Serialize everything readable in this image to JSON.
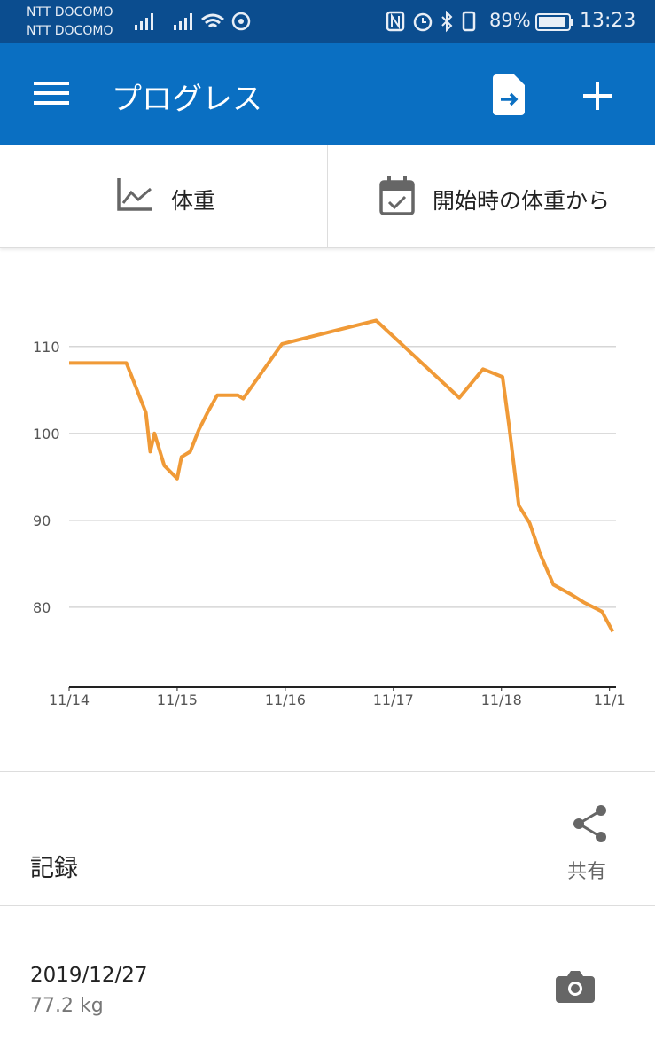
{
  "status_bar": {
    "carriers": [
      "NTT DOCOMO",
      "NTT DOCOMO"
    ],
    "battery": "89%",
    "time": "13:23"
  },
  "app_bar": {
    "title": "プログレス"
  },
  "tabs": [
    "体重",
    "開始時の体重から"
  ],
  "chart_data": {
    "type": "line",
    "x": [
      0,
      0.53,
      0.71,
      0.75,
      0.79,
      0.88,
      1.0,
      1.04,
      1.12,
      1.2,
      1.28,
      1.37,
      1.56,
      1.61,
      1.97,
      2.84,
      3.61,
      3.83,
      4.01,
      4.07,
      4.16,
      4.26,
      4.36,
      4.48,
      4.64,
      4.77,
      4.93,
      5.03
    ],
    "values": [
      108.1,
      108.1,
      102.4,
      97.9,
      100,
      96.3,
      94.8,
      97.3,
      97.9,
      100.4,
      102.4,
      104.4,
      104.4,
      104,
      110.3,
      113,
      104.1,
      107.4,
      106.5,
      100.9,
      91.7,
      89.7,
      86.1,
      82.6,
      81.5,
      80.5,
      79.5,
      77.2
    ],
    "color": "#f09a37",
    "xlim": [
      0,
      5.06
    ],
    "ylim": [
      70.8,
      119
    ],
    "xticks": [
      {
        "value": 0,
        "label": "11/14"
      },
      {
        "value": 1,
        "label": "11/15"
      },
      {
        "value": 2,
        "label": "11/16"
      },
      {
        "value": 3,
        "label": "11/17"
      },
      {
        "value": 4,
        "label": "11/18"
      },
      {
        "value": 5,
        "label": "11/1"
      }
    ],
    "yticks": [
      80,
      90,
      100,
      110
    ],
    "grid": true
  },
  "records": {
    "title": "記録",
    "share": "共有",
    "entries": [
      {
        "date": "2019/12/27",
        "weight": "77.2 kg"
      }
    ]
  }
}
